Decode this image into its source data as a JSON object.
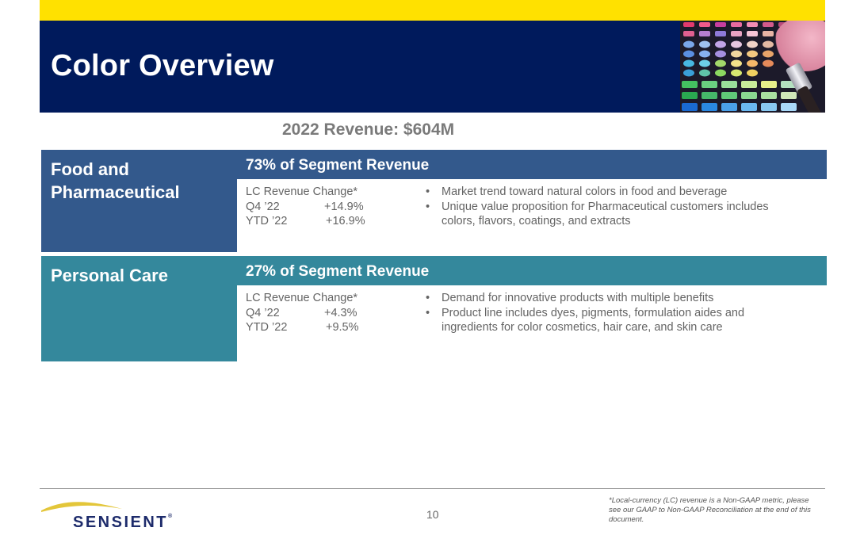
{
  "title": "Color Overview",
  "revenue_heading": "2022 Revenue: $604M",
  "segments": [
    {
      "name": "Food and Pharmaceutical",
      "name_line1": "Food and",
      "name_line2": "Pharmaceutical",
      "share": "73% of Segment Revenue",
      "lc_label": "LC Revenue Change*",
      "q4_label": "Q4 ’22",
      "q4_value": "+14.9%",
      "ytd_label": "YTD ’22",
      "ytd_value": "+16.9%",
      "bullets": [
        "Market trend toward natural colors in food and beverage",
        "Unique value proposition for Pharmaceutical customers includes colors, flavors, coatings, and extracts"
      ]
    },
    {
      "name": "Personal Care",
      "share": "27% of Segment Revenue",
      "lc_label": "LC Revenue Change*",
      "q4_label": "Q4 ’22",
      "q4_value": "+4.3%",
      "ytd_label": "YTD ’22",
      "ytd_value": "+9.5%",
      "bullets": [
        "Demand for innovative products with multiple benefits",
        "Product line includes dyes, pigments, formulation aides and ingredients for color cosmetics, hair care, and skin care"
      ]
    }
  ],
  "bullet_glyph": "•",
  "footer": {
    "brand": "SENSIENT",
    "registered": "®",
    "page_number": "10",
    "footnote": "*Local-currency (LC) revenue is a Non-GAAP metric, please see our GAAP to Non-GAAP Reconciliation at the end of this document."
  },
  "colors": {
    "header_navy": "#001A5C",
    "accent_yellow": "#FFE100",
    "food_blue": "#33598C",
    "care_teal": "#34889C",
    "body_gray": "#646464"
  },
  "icons": [
    "eyeshadow-palette-image",
    "makeup-brush-icon",
    "sensient-swoosh-icon"
  ]
}
